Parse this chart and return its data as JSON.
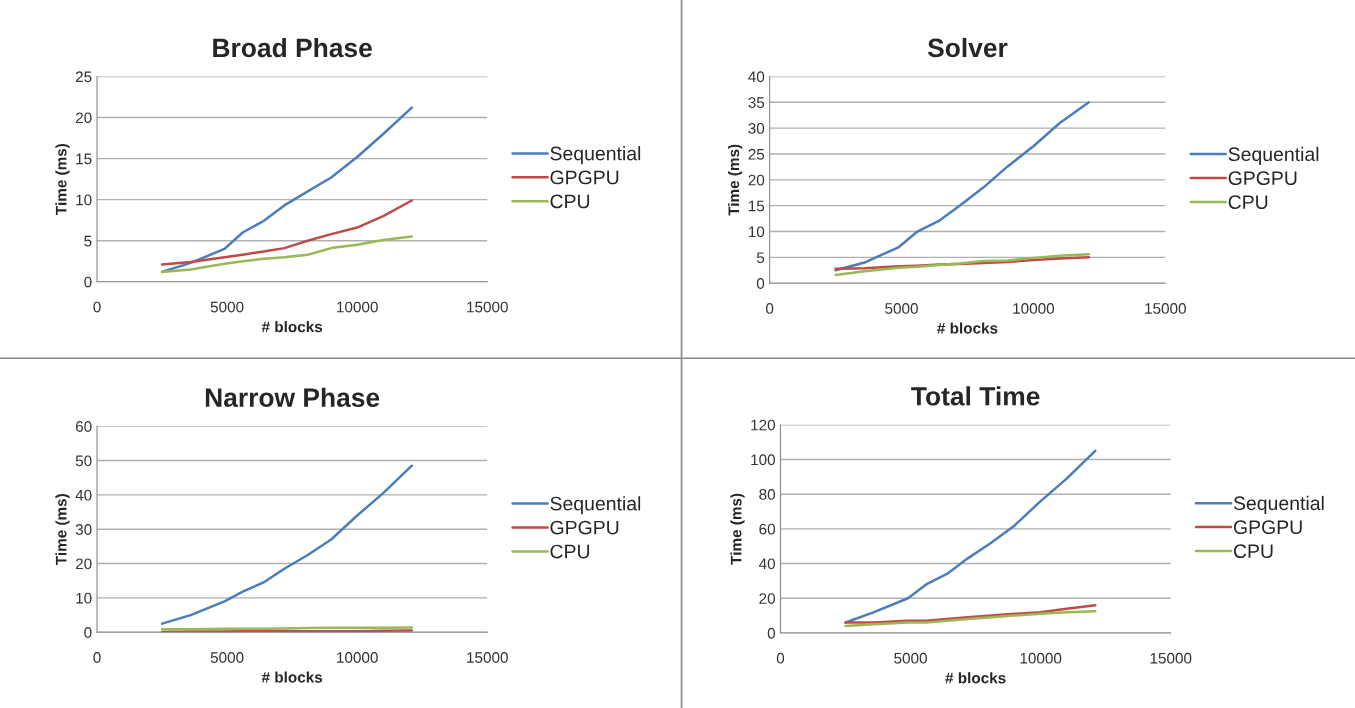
{
  "chart_data": [
    {
      "type": "line",
      "title": "Broad Phase",
      "xlabel": "# blocks",
      "ylabel": "Time (ms)",
      "x": [
        2500,
        3600,
        4900,
        5600,
        6400,
        7200,
        8100,
        9000,
        10000,
        11000,
        12100
      ],
      "xlim": [
        0,
        15000
      ],
      "xticks": [
        0,
        5000,
        10000,
        15000
      ],
      "ylim": [
        0,
        25
      ],
      "yticks": [
        0,
        5,
        10,
        15,
        20,
        25
      ],
      "grid": "y",
      "legend": "right",
      "marker": "none",
      "line_style": "solid",
      "series": [
        {
          "name": "Sequential",
          "color": "#4a7ebb",
          "values": [
            1.2,
            2.3,
            4.0,
            6.0,
            7.4,
            9.3,
            11,
            12.7,
            15.2,
            18,
            21.2
          ]
        },
        {
          "name": "GPGPU",
          "color": "#be4b48",
          "values": [
            2.1,
            2.4,
            3.0,
            3.3,
            3.7,
            4.1,
            5.0,
            5.8,
            6.6,
            8.0,
            9.9
          ]
        },
        {
          "name": "CPU",
          "color": "#98b954",
          "values": [
            1.2,
            1.5,
            2.2,
            2.5,
            2.8,
            3.0,
            3.3,
            4.1,
            4.5,
            5.1,
            5.5
          ]
        }
      ]
    },
    {
      "type": "line",
      "title": "Solver",
      "xlabel": "# blocks",
      "ylabel": "Time (ms)",
      "x": [
        2500,
        3600,
        4900,
        5600,
        6400,
        7200,
        8100,
        9000,
        10000,
        11000,
        12100
      ],
      "xlim": [
        0,
        15000
      ],
      "xticks": [
        0,
        5000,
        10000,
        15000
      ],
      "ylim": [
        0,
        40
      ],
      "yticks": [
        0,
        5,
        10,
        15,
        20,
        25,
        30,
        35,
        40
      ],
      "grid": "y",
      "legend": "right",
      "marker": "none",
      "line_style": "solid",
      "series": [
        {
          "name": "Sequential",
          "color": "#4a7ebb",
          "values": [
            2.5,
            4,
            7,
            10,
            12,
            15,
            18.5,
            22.5,
            26.5,
            31,
            35
          ]
        },
        {
          "name": "GPGPU",
          "color": "#be4b48",
          "values": [
            2.8,
            2.9,
            3.3,
            3.4,
            3.6,
            3.7,
            3.9,
            4.1,
            4.5,
            4.8,
            5.0
          ]
        },
        {
          "name": "CPU",
          "color": "#98b954",
          "values": [
            1.6,
            2.3,
            3.0,
            3.2,
            3.5,
            3.8,
            4.3,
            4.4,
            4.9,
            5.3,
            5.6
          ]
        }
      ]
    },
    {
      "type": "line",
      "title": "Narrow Phase",
      "xlabel": "# blocks",
      "ylabel": "Time (ms)",
      "x": [
        2500,
        3600,
        4900,
        5600,
        6400,
        7200,
        8100,
        9000,
        10000,
        11000,
        12100
      ],
      "xlim": [
        0,
        15000
      ],
      "xticks": [
        0,
        5000,
        10000,
        15000
      ],
      "ylim": [
        0,
        60
      ],
      "yticks": [
        0,
        10,
        20,
        30,
        40,
        50,
        60
      ],
      "grid": "y",
      "legend": "right",
      "marker": "none",
      "line_style": "solid",
      "series": [
        {
          "name": "Sequential",
          "color": "#4a7ebb",
          "values": [
            2.5,
            5,
            9,
            11.8,
            14.5,
            18.5,
            22.5,
            27,
            34,
            40.5,
            48.5
          ]
        },
        {
          "name": "GPGPU",
          "color": "#be4b48",
          "values": [
            0.1,
            0.2,
            0.2,
            0.3,
            0.4,
            0.3,
            0.3,
            0.3,
            0.3,
            0.4,
            0.5
          ]
        },
        {
          "name": "CPU",
          "color": "#98b954",
          "values": [
            0.9,
            0.9,
            1.0,
            1.0,
            1.0,
            1.1,
            1.2,
            1.3,
            1.3,
            1.3,
            1.4
          ]
        }
      ]
    },
    {
      "type": "line",
      "title": "Total Time",
      "xlabel": "# blocks",
      "ylabel": "Time (ms)",
      "x": [
        2500,
        3600,
        4900,
        5600,
        6400,
        7200,
        8100,
        9000,
        10000,
        11000,
        12100
      ],
      "xlim": [
        0,
        15000
      ],
      "xticks": [
        0,
        5000,
        10000,
        15000
      ],
      "ylim": [
        0,
        120
      ],
      "yticks": [
        0,
        20,
        40,
        60,
        80,
        100,
        120
      ],
      "grid": "y",
      "legend": "right",
      "marker": "none",
      "line_style": "solid",
      "series": [
        {
          "name": "Sequential",
          "color": "#4a7ebb",
          "values": [
            6,
            12,
            20,
            28,
            34,
            43,
            52,
            62,
            76,
            89,
            105
          ]
        },
        {
          "name": "GPGPU",
          "color": "#be4b48",
          "values": [
            6,
            6,
            7,
            7,
            8,
            9,
            10,
            11,
            12,
            14,
            16
          ]
        },
        {
          "name": "CPU",
          "color": "#98b954",
          "values": [
            4,
            5,
            6,
            6,
            7,
            8,
            9,
            10,
            11,
            12,
            12.5
          ]
        }
      ]
    }
  ]
}
